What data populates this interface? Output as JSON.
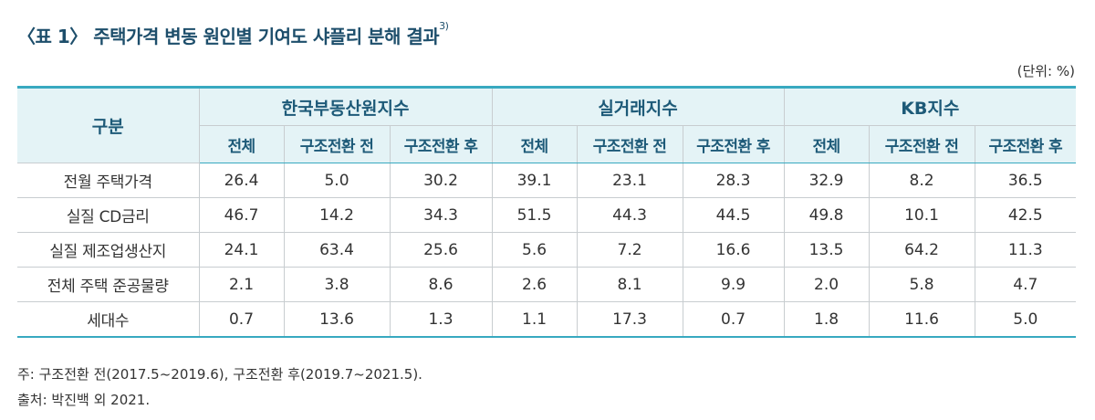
{
  "title": {
    "text": "〈표 1〉 주택가격 변동 원인별 기여도 샤플리 분해 결과",
    "sup": "3)"
  },
  "unit": "(단위: %)",
  "table": {
    "row_header": "구분",
    "groups": [
      "한국부동산원지수",
      "실거래지수",
      "KB지수"
    ],
    "subheaders": [
      "전체",
      "구조전환 전",
      "구조전환 후"
    ],
    "rows": [
      {
        "label": "전월 주택가격",
        "values": [
          "26.4",
          "5.0",
          "30.2",
          "39.1",
          "23.1",
          "28.3",
          "32.9",
          "8.2",
          "36.5"
        ]
      },
      {
        "label": "실질 CD금리",
        "values": [
          "46.7",
          "14.2",
          "34.3",
          "51.5",
          "44.3",
          "44.5",
          "49.8",
          "10.1",
          "42.5"
        ]
      },
      {
        "label": "실질 제조업생산지",
        "values": [
          "24.1",
          "63.4",
          "25.6",
          "5.6",
          "7.2",
          "16.6",
          "13.5",
          "64.2",
          "11.3"
        ]
      },
      {
        "label": "전체 주택 준공물량",
        "values": [
          "2.1",
          "3.8",
          "8.6",
          "2.6",
          "8.1",
          "9.9",
          "2.0",
          "5.8",
          "4.7"
        ]
      },
      {
        "label": "세대수",
        "values": [
          "0.7",
          "13.6",
          "1.3",
          "1.1",
          "17.3",
          "0.7",
          "1.8",
          "11.6",
          "5.0"
        ]
      }
    ]
  },
  "notes": {
    "note": "주: 구조전환 전(2017.5~2019.6), 구조전환 후(2019.7~2021.5).",
    "source": "출처: 박진백 외 2021."
  },
  "colors": {
    "title": "#1d4e6b",
    "header_bg": "#e4f3f6",
    "header_text": "#1d5a78",
    "rule": "#38a9c0"
  }
}
